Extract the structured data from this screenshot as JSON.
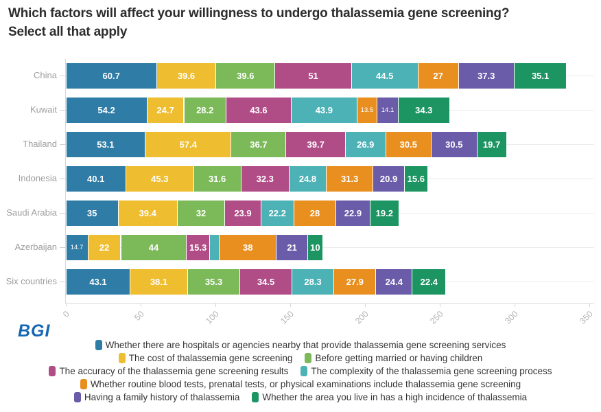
{
  "title": "Which factors will affect your willingness to undergo thalassemia gene screening? Select all that apply",
  "logo_text": "BGI",
  "brand_color": "#1667b1",
  "chart_data": {
    "type": "bar",
    "stacked": true,
    "orientation": "horizontal",
    "title": "Which factors will affect your willingness to undergo thalassemia gene screening? Select all that apply",
    "categories": [
      "China",
      "Kuwait",
      "Thailand",
      "Indonesia",
      "Saudi Arabia",
      "Azerbaijan",
      "Six countries"
    ],
    "series": [
      {
        "name": "Whether there are hospitals or agencies nearby that provide thalassemia gene screening services",
        "color": "#2f7ca6",
        "values": [
          60.7,
          54.2,
          53.1,
          40.1,
          35,
          14.7,
          43.1
        ]
      },
      {
        "name": "The cost of thalassemia gene screening",
        "color": "#eebd30",
        "values": [
          39.6,
          24.7,
          57.4,
          45.3,
          39.4,
          22,
          38.1
        ]
      },
      {
        "name": "Before getting married or having children",
        "color": "#7cba59",
        "values": [
          39.6,
          28.2,
          36.7,
          31.6,
          32,
          44,
          35.3
        ]
      },
      {
        "name": "The accuracy of the thalassemia gene screening results",
        "color": "#b04d87",
        "values": [
          51,
          43.6,
          39.7,
          32.3,
          23.9,
          15.3,
          34.5
        ]
      },
      {
        "name": "The complexity of the thalassemia gene screening process",
        "color": "#4cb2b6",
        "values": [
          44.5,
          43.9,
          26.9,
          24.8,
          22.2,
          6.7,
          28.3
        ]
      },
      {
        "name": "Whether routine blood tests, prenatal tests, or physical examinations include thalassemia gene screening",
        "color": "#e88f20",
        "values": [
          27,
          13.5,
          30.5,
          31.3,
          28,
          38,
          27.9
        ]
      },
      {
        "name": "Having a family history of thalassemia",
        "color": "#6a5ca8",
        "values": [
          37.3,
          14.1,
          30.5,
          20.9,
          22.9,
          21,
          24.4
        ]
      },
      {
        "name": "Whether the area you live in has a high incidence of thalassemia",
        "color": "#1d9563",
        "values": [
          35.1,
          34.3,
          19.7,
          15.6,
          19.2,
          10,
          22.4
        ]
      }
    ],
    "xlabel": "",
    "ylabel": "",
    "x_ticks": [
      0,
      50,
      100,
      150,
      200,
      250,
      300,
      350
    ],
    "xlim": [
      0,
      350
    ],
    "grid": "horizontal category lines only",
    "value_labels": "inside segments, white",
    "legend_position": "bottom centered",
    "legend_rows": [
      [
        0
      ],
      [
        1,
        2
      ],
      [
        3,
        4
      ],
      [
        5
      ],
      [
        6,
        7
      ]
    ]
  }
}
